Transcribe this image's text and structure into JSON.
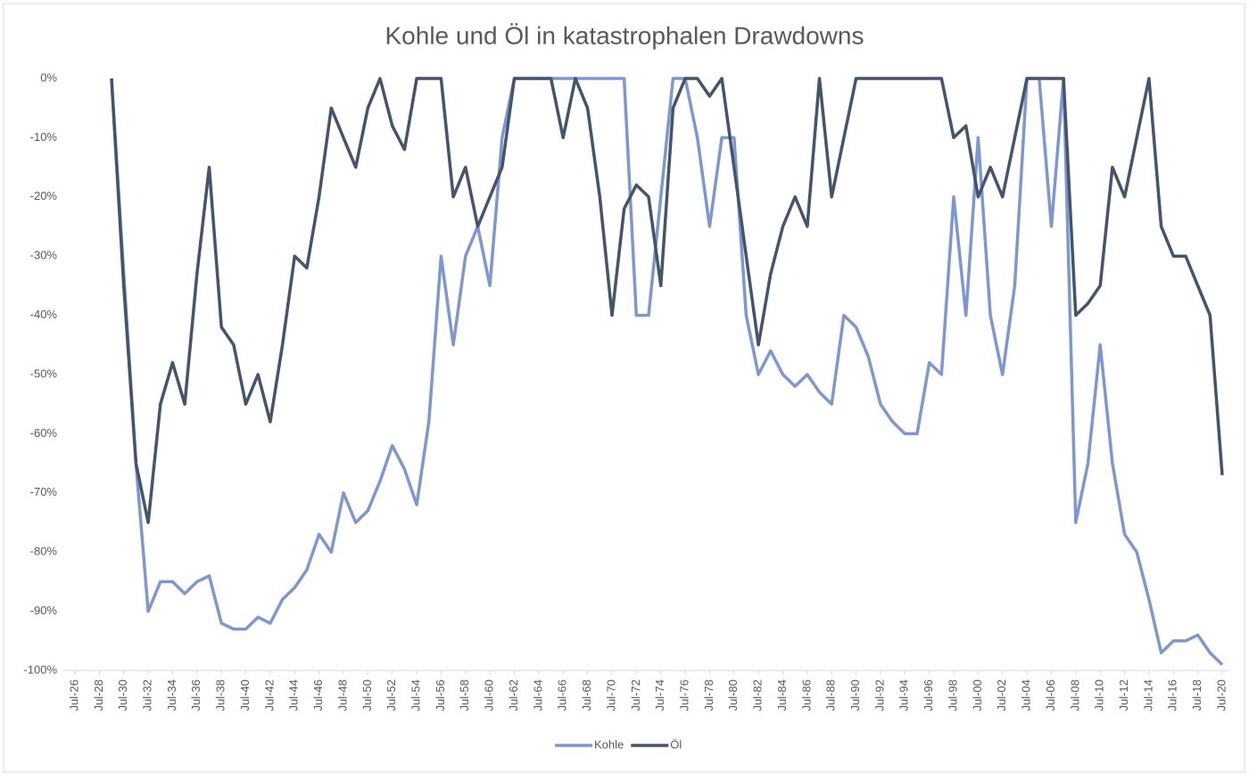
{
  "chart_data": {
    "type": "line",
    "title": "Kohle und Öl in katastrophalen Drawdowns",
    "categories": [
      "Jul-26",
      null,
      "Jul-28",
      null,
      "Jul-30",
      null,
      "Jul-32",
      null,
      "Jul-34",
      null,
      "Jul-36",
      null,
      "Jul-38",
      null,
      "Jul-40",
      null,
      "Jul-42",
      null,
      "Jul-44",
      null,
      "Jul-46",
      null,
      "Jul-48",
      null,
      "Jul-50",
      null,
      "Jul-52",
      null,
      "Jul-54",
      null,
      "Jul-56",
      null,
      "Jul-58",
      null,
      "Jul-60",
      null,
      "Jul-62",
      null,
      "Jul-64",
      null,
      "Jul-66",
      null,
      "Jul-68",
      null,
      "Jul-70",
      null,
      "Jul-72",
      null,
      "Jul-74",
      null,
      "Jul-76",
      null,
      "Jul-78",
      null,
      "Jul-80",
      null,
      "Jul-82",
      null,
      "Jul-84",
      null,
      "Jul-86",
      null,
      "Jul-88",
      null,
      "Jul-90",
      null,
      "Jul-92",
      null,
      "Jul-94",
      null,
      "Jul-96",
      null,
      "Jul-98",
      null,
      "Jul-00",
      null,
      "Jul-02",
      null,
      "Jul-04",
      null,
      "Jul-06",
      null,
      "Jul-08",
      null,
      "Jul-10",
      null,
      "Jul-12",
      null,
      "Jul-14",
      null,
      "Jul-16",
      null,
      "Jul-18",
      null,
      "Jul-20"
    ],
    "series": [
      {
        "name": "Kohle",
        "color": "#7f97cf",
        "values": [
          null,
          null,
          null,
          0,
          -33,
          -65,
          -90,
          -85,
          -85,
          -87,
          -85,
          -84,
          -92,
          -93,
          -93,
          -91,
          -92,
          -88,
          -86,
          -83,
          -77,
          -80,
          -70,
          -75,
          -73,
          -68,
          -62,
          -66,
          -72,
          -58,
          -30,
          -45,
          -30,
          -25,
          -35,
          -10,
          0,
          0,
          0,
          0,
          0,
          0,
          0,
          0,
          0,
          0,
          -40,
          -40,
          -20,
          0,
          0,
          -10,
          -25,
          -10,
          -10,
          -40,
          -50,
          -46,
          -50,
          -52,
          -50,
          -53,
          -55,
          -40,
          -42,
          -47,
          -55,
          -58,
          -60,
          -60,
          -48,
          -50,
          -20,
          -40,
          -10,
          -40,
          -50,
          -35,
          0,
          0,
          -25,
          0,
          -75,
          -65,
          -45,
          -65,
          -77,
          -80,
          -88,
          -97,
          -95,
          -95,
          -94,
          -97,
          -99
        ]
      },
      {
        "name": "Öl",
        "color": "#44546a",
        "values": [
          null,
          null,
          null,
          0,
          -35,
          -65,
          -75,
          -55,
          -48,
          -55,
          -33,
          -15,
          -42,
          -45,
          -55,
          -50,
          -58,
          -45,
          -30,
          -32,
          -20,
          -5,
          -10,
          -15,
          -5,
          0,
          -8,
          -12,
          0,
          0,
          0,
          -20,
          -15,
          -25,
          -20,
          -15,
          0,
          0,
          0,
          0,
          -10,
          0,
          -5,
          -20,
          -40,
          -22,
          -18,
          -20,
          -35,
          -5,
          0,
          0,
          -3,
          0,
          -15,
          -30,
          -45,
          -33,
          -25,
          -20,
          -25,
          0,
          -20,
          -10,
          0,
          0,
          0,
          0,
          0,
          0,
          0,
          0,
          -10,
          -8,
          -20,
          -15,
          -20,
          -10,
          0,
          0,
          0,
          0,
          -40,
          -38,
          -35,
          -15,
          -20,
          -10,
          0,
          -25,
          -30,
          -30,
          -35,
          -40,
          -67
        ]
      }
    ],
    "ylim": [
      -100,
      0
    ],
    "yticks": [
      {
        "value": 0,
        "label": "0%"
      },
      {
        "value": -10,
        "label": "-10%"
      },
      {
        "value": -20,
        "label": "-20%"
      },
      {
        "value": -30,
        "label": "-30%"
      },
      {
        "value": -40,
        "label": "-40%"
      },
      {
        "value": -50,
        "label": "-50%"
      },
      {
        "value": -60,
        "label": "-60%"
      },
      {
        "value": -70,
        "label": "-70%"
      },
      {
        "value": -80,
        "label": "-80%"
      },
      {
        "value": -90,
        "label": "-90%"
      },
      {
        "value": -100,
        "label": "-100%"
      }
    ],
    "legend": "bottom"
  }
}
